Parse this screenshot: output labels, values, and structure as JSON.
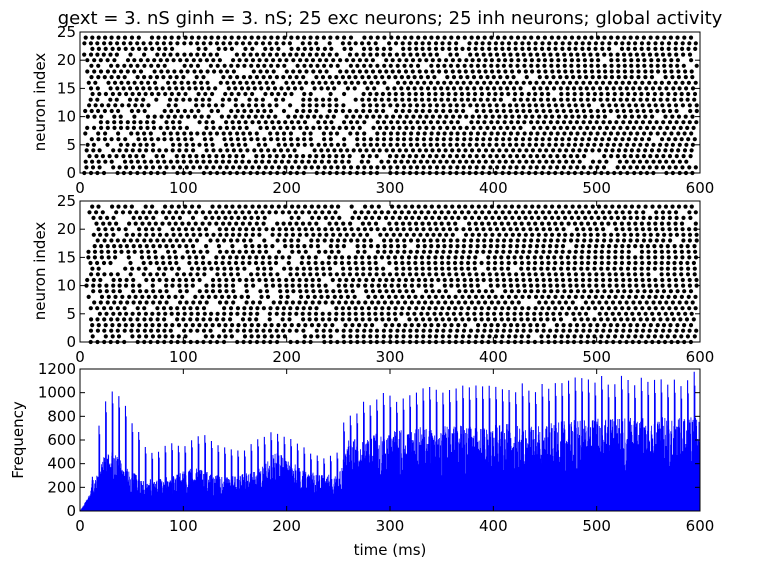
{
  "title": "gext = 3. nS ginh = 3. nS; 25 exc neurons; 25 inh neurons; global activity",
  "colors": {
    "spike": "#000000",
    "rate": "#0000ff",
    "axes": "#000000",
    "background": "#ffffff"
  },
  "chart_data": [
    {
      "type": "scatter",
      "panel": "excitatory-raster",
      "xlabel": "",
      "ylabel": "neuron index",
      "xlim": [
        0,
        600
      ],
      "ylim": [
        0,
        25
      ],
      "xticks": [
        "0",
        "100",
        "200",
        "300",
        "400",
        "500",
        "600"
      ],
      "yticks": [
        "0",
        "5",
        "10",
        "15",
        "20",
        "25"
      ],
      "neurons": 25,
      "spike_interval_ms": 6.4,
      "first_spike_ms": 4,
      "last_spike_ms": 597,
      "grid": false
    },
    {
      "type": "scatter",
      "panel": "inhibitory-raster",
      "xlabel": "",
      "ylabel": "neuron index",
      "xlim": [
        0,
        600
      ],
      "ylim": [
        0,
        25
      ],
      "xticks": [
        "0",
        "100",
        "200",
        "300",
        "400",
        "500",
        "600"
      ],
      "yticks": [
        "0",
        "5",
        "10",
        "15",
        "20",
        "25"
      ],
      "neurons": 25,
      "spike_interval_ms": 6.4,
      "first_spike_ms": 6,
      "last_spike_ms": 597,
      "grid": false
    },
    {
      "type": "line",
      "panel": "global-activity",
      "xlabel": "time (ms)",
      "ylabel": "Frequency",
      "xlim": [
        0,
        600
      ],
      "ylim": [
        0,
        1200
      ],
      "xticks": [
        "0",
        "100",
        "200",
        "300",
        "400",
        "500",
        "600"
      ],
      "yticks": [
        "0",
        "200",
        "400",
        "600",
        "800",
        "1000",
        "1200"
      ],
      "grid": false,
      "envelope_peaks": {
        "x": [
          0,
          10,
          15,
          20,
          25,
          30,
          40,
          50,
          60,
          70,
          80,
          90,
          100,
          110,
          120,
          130,
          140,
          150,
          160,
          170,
          180,
          190,
          200,
          210,
          220,
          230,
          240,
          250,
          255,
          260,
          270,
          280,
          290,
          300,
          310,
          320,
          340,
          360,
          380,
          400,
          420,
          440,
          460,
          480,
          500,
          520,
          540,
          560,
          580,
          600
        ],
        "y": [
          0,
          150,
          500,
          830,
          1000,
          1070,
          1000,
          800,
          610,
          520,
          540,
          590,
          560,
          620,
          660,
          620,
          560,
          500,
          540,
          600,
          680,
          670,
          640,
          580,
          540,
          500,
          470,
          540,
          780,
          860,
          900,
          960,
          1010,
          980,
          1010,
          1030,
          1060,
          1080,
          1070,
          1060,
          1080,
          1090,
          1110,
          1140,
          1150,
          1160,
          1150,
          1130,
          1140,
          1200
        ]
      },
      "envelope_floor": {
        "x": [
          0,
          10,
          20,
          30,
          60,
          90,
          110,
          140,
          170,
          190,
          220,
          250,
          260,
          300,
          400,
          500,
          600
        ],
        "y": [
          0,
          100,
          430,
          520,
          260,
          300,
          370,
          280,
          340,
          500,
          330,
          300,
          600,
          700,
          730,
          780,
          800
        ]
      }
    }
  ]
}
